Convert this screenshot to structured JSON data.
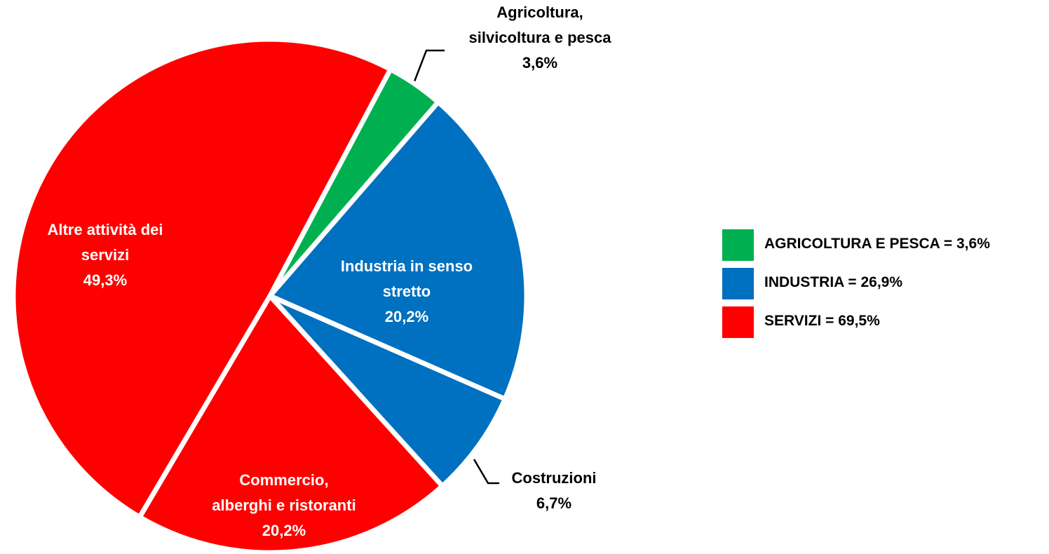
{
  "chart_data": {
    "type": "pie",
    "categories": [
      "Agricoltura,\nsilvicoltura e pesca",
      "Industria in senso\nstretto",
      "Costruzioni",
      "Commercio,\nalberghi e ristoranti",
      "Altre attività dei\nservizi"
    ],
    "values": [
      3.6,
      20.2,
      6.7,
      20.2,
      49.3
    ],
    "value_labels": [
      "3,6%",
      "20,2%",
      "6,7%",
      "20,2%",
      "49,3%"
    ],
    "colors": [
      "#00b050",
      "#0070c0",
      "#0070c0",
      "#ff0000",
      "#ff0000"
    ],
    "legend": [
      {
        "name": "AGRICOLTURA E PESCA = 3,6%",
        "color": "#00b050"
      },
      {
        "name": "INDUSTRIA = 26,9%",
        "color": "#0070c0"
      },
      {
        "name": "SERVIZI = 69,5%",
        "color": "#ff0000"
      }
    ]
  }
}
